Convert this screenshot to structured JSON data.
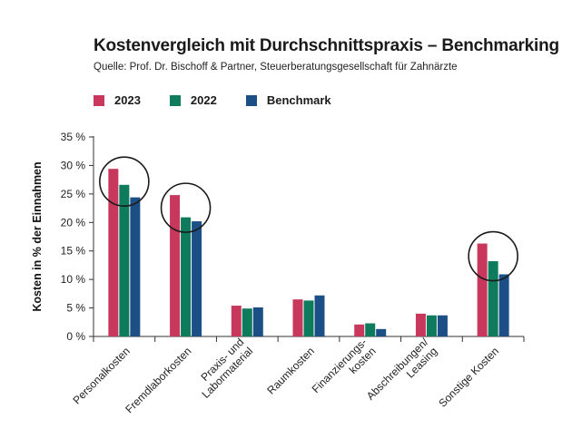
{
  "title": "Kostenvergleich mit Durchschnittspraxis – Benchmarking",
  "subtitle": "Quelle: Prof. Dr. Bischoff & Partner, Steuerberatungsgesellschaft für Zahnärzte",
  "colors": {
    "2023": "#c8385d",
    "2022": "#0d7b5c",
    "Benchmark": "#1c4f86",
    "axis": "#333333",
    "circle": "#1a1a1a"
  },
  "legend": [
    {
      "label": "2023",
      "color_key": "2023"
    },
    {
      "label": "2022",
      "color_key": "2022"
    },
    {
      "label": "Benchmark",
      "color_key": "Benchmark"
    }
  ],
  "chart_data": {
    "type": "bar",
    "title": "Kostenvergleich mit Durchschnittspraxis – Benchmarking",
    "ylabel": "Kosten in % der Einnahmen",
    "xlabel": "",
    "ylim": [
      0,
      35
    ],
    "yticks": [
      0,
      5,
      10,
      15,
      20,
      25,
      30,
      35
    ],
    "ytick_labels": [
      "0 %",
      "5 %",
      "10 %",
      "15 %",
      "20 %",
      "25 %",
      "30 %",
      "35 %"
    ],
    "categories": [
      [
        "Personalkosten"
      ],
      [
        "Fremdlaborkosten"
      ],
      [
        "Praxis- und",
        "Labormaterial"
      ],
      [
        "Raumkosten"
      ],
      [
        "Finanzierungs-",
        "kosten"
      ],
      [
        "Abschreibungen/",
        "Leasing"
      ],
      [
        "Sonstige Kosten"
      ]
    ],
    "series": [
      {
        "name": "2023",
        "values": [
          29.4,
          24.8,
          5.4,
          6.5,
          2.1,
          4.0,
          16.3
        ]
      },
      {
        "name": "2022",
        "values": [
          26.6,
          20.9,
          4.9,
          6.3,
          2.3,
          3.7,
          13.2
        ]
      },
      {
        "name": "Benchmark",
        "values": [
          24.4,
          20.2,
          5.1,
          7.2,
          1.3,
          3.7,
          10.9
        ]
      }
    ],
    "highlighted_categories": [
      0,
      1,
      6
    ],
    "grid": false,
    "legend_position": "top-left"
  }
}
